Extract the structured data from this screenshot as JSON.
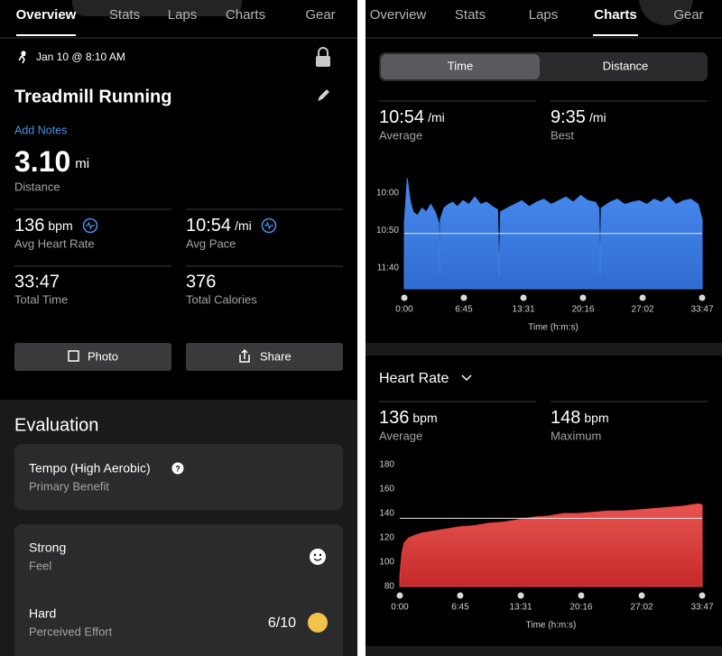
{
  "left": {
    "tabs": [
      "Overview",
      "Stats",
      "Laps",
      "Charts",
      "Gear"
    ],
    "date": "Jan 10 @ 8:10 AM",
    "title": "Treadmill Running",
    "add_notes": "Add Notes",
    "distance": {
      "value": "3.10",
      "unit": "mi",
      "label": "Distance"
    },
    "stats": [
      {
        "value": "136",
        "unit": "bpm",
        "label": "Avg Heart Rate"
      },
      {
        "value": "10:54",
        "unit": "/mi",
        "label": "Avg Pace"
      },
      {
        "value": "33:47",
        "label": "Total Time"
      },
      {
        "value": "376",
        "label": "Total Calories"
      }
    ],
    "buttons": [
      "Photo",
      "Share"
    ],
    "evaluation": {
      "title": "Evaluation",
      "benefit": {
        "value": "Tempo (High Aerobic)",
        "label": "Primary Benefit"
      },
      "feel": {
        "value": "Strong",
        "label": "Feel"
      },
      "effort": {
        "value": "Hard",
        "label": "Perceived Effort",
        "score": "6/10"
      }
    }
  },
  "right": {
    "tabs": [
      "Overview",
      "Stats",
      "Laps",
      "Charts",
      "Gear"
    ],
    "segments": [
      "Time",
      "Distance"
    ],
    "pace_summary": [
      {
        "value": "10:54",
        "unit": "/mi",
        "label": "Average"
      },
      {
        "value": "9:35",
        "unit": "/mi",
        "label": "Best"
      }
    ],
    "pace_chart": {
      "type": "area",
      "color": "#3d7fe3",
      "x": [
        0,
        20,
        40,
        60,
        90,
        120,
        150,
        180,
        210,
        235,
        240,
        245,
        270,
        300,
        330,
        360,
        400,
        440,
        480,
        520,
        560,
        600,
        635,
        645,
        655,
        700,
        750,
        800,
        850,
        900,
        950,
        1000,
        1050,
        1100,
        1150,
        1200,
        1250,
        1300,
        1325,
        1333,
        1340,
        1400,
        1450,
        1500,
        1550,
        1600,
        1650,
        1700,
        1750,
        1800,
        1850,
        1900,
        1950,
        2000,
        2027
      ],
      "values": [
        640,
        580,
        610,
        625,
        630,
        620,
        625,
        615,
        625,
        640,
        710,
        635,
        620,
        615,
        612,
        618,
        610,
        615,
        605,
        615,
        612,
        618,
        622,
        712,
        625,
        620,
        615,
        610,
        618,
        612,
        608,
        615,
        610,
        605,
        612,
        603,
        610,
        612,
        620,
        712,
        620,
        612,
        608,
        615,
        612,
        610,
        615,
        608,
        612,
        605,
        615,
        610,
        608,
        615,
        635
      ],
      "xlim": [
        0,
        2027
      ],
      "xticks": [
        {
          "value": 0,
          "label": "0:00"
        },
        {
          "value": 405,
          "label": "6:45"
        },
        {
          "value": 811,
          "label": "13:31"
        },
        {
          "value": 1216,
          "label": "20:16"
        },
        {
          "value": 1622,
          "label": "27:02"
        },
        {
          "value": 2027,
          "label": "33:47"
        }
      ],
      "xlabel": "Time (h:m:s)",
      "ylim": [
        728,
        577
      ],
      "yticks": [
        {
          "value": 600,
          "label": "10:00"
        },
        {
          "value": 650,
          "label": "10:50"
        },
        {
          "value": 700,
          "label": "11:40"
        }
      ],
      "average_line": 654
    },
    "hr_title": "Heart Rate",
    "hr_summary": [
      {
        "value": "136",
        "unit": "bpm",
        "label": "Average"
      },
      {
        "value": "148",
        "unit": "bpm",
        "label": "Maximum"
      }
    ],
    "hr_chart": {
      "type": "area",
      "color": "#e0413f",
      "x": [
        0,
        15,
        30,
        60,
        100,
        150,
        200,
        300,
        400,
        500,
        600,
        700,
        800,
        900,
        1000,
        1100,
        1200,
        1300,
        1400,
        1500,
        1600,
        1700,
        1800,
        1900,
        1950,
        2000,
        2027
      ],
      "values": [
        88,
        108,
        116,
        120,
        122,
        124,
        125,
        127,
        129,
        130,
        132,
        133,
        135,
        137,
        138,
        140,
        140,
        141,
        142,
        142,
        143,
        144,
        145,
        146,
        147,
        148,
        147
      ],
      "xlim": [
        0,
        2027
      ],
      "xticks": [
        {
          "value": 0,
          "label": "0:00"
        },
        {
          "value": 405,
          "label": "6:45"
        },
        {
          "value": 811,
          "label": "13:31"
        },
        {
          "value": 1216,
          "label": "20:16"
        },
        {
          "value": 1622,
          "label": "27:02"
        },
        {
          "value": 2027,
          "label": "33:47"
        }
      ],
      "xlabel": "Time (h:m:s)",
      "ylim": [
        80,
        180
      ],
      "yticks": [
        80,
        100,
        120,
        140,
        160,
        180
      ],
      "average_line": 136
    }
  }
}
